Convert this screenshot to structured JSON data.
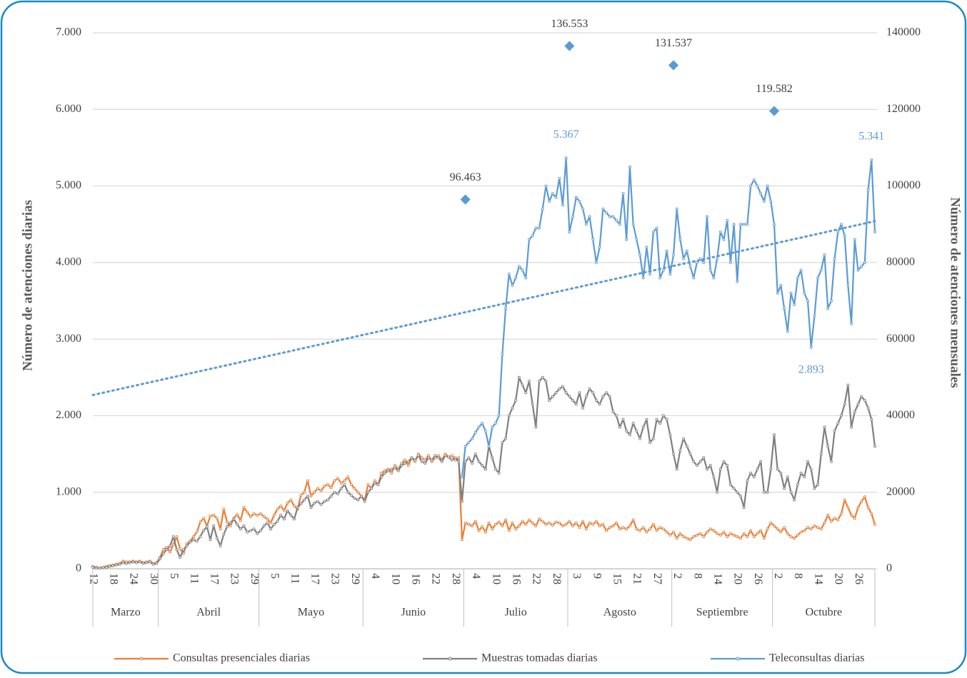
{
  "chart_data": {
    "type": "line",
    "y_label": "Número de atenciones diarias",
    "y2_label": "Número de atenciones mensuales",
    "ylim": [
      0,
      7000
    ],
    "yticks": [
      0,
      {
        "value": 1000,
        "label": "1.000"
      },
      {
        "value": 2000,
        "label": "2.000"
      },
      {
        "value": 3000,
        "label": "3.000"
      },
      {
        "value": 4000,
        "label": "4.000"
      },
      {
        "value": 5000,
        "label": "5.000"
      },
      {
        "value": 6000,
        "label": "6.000"
      },
      {
        "value": 7000,
        "label": "7.000"
      }
    ],
    "y2lim": [
      0,
      140000
    ],
    "y2ticks": [
      0,
      20000,
      40000,
      60000,
      80000,
      100000,
      120000,
      140000
    ],
    "grid": true,
    "legend": "bottom",
    "categories": [
      "12",
      null,
      null,
      null,
      null,
      null,
      "18",
      null,
      null,
      null,
      null,
      null,
      "24",
      null,
      null,
      null,
      null,
      null,
      "30",
      null,
      null,
      null,
      null,
      null,
      "5",
      null,
      null,
      null,
      null,
      null,
      "11",
      null,
      null,
      null,
      null,
      null,
      "17",
      null,
      null,
      null,
      null,
      null,
      "23",
      null,
      null,
      null,
      null,
      null,
      "29",
      null,
      null,
      null,
      null,
      null,
      "5",
      null,
      null,
      null,
      null,
      null,
      "11",
      null,
      null,
      null,
      null,
      null,
      "17",
      null,
      null,
      null,
      null,
      null,
      "23",
      null,
      null,
      null,
      null,
      null,
      "29",
      null,
      null,
      null,
      null,
      null,
      "4",
      null,
      null,
      null,
      null,
      null,
      "10",
      null,
      null,
      null,
      null,
      null,
      "16",
      null,
      null,
      null,
      null,
      null,
      "22",
      null,
      null,
      null,
      null,
      null,
      "28",
      null,
      null,
      null,
      null,
      null,
      "4",
      null,
      null,
      null,
      null,
      null,
      "10",
      null,
      null,
      null,
      null,
      null,
      "16",
      null,
      null,
      null,
      null,
      null,
      "22",
      null,
      null,
      null,
      null,
      null,
      "28",
      null,
      null,
      null,
      null,
      null,
      "3",
      null,
      null,
      null,
      null,
      null,
      "9",
      null,
      null,
      null,
      null,
      null,
      "15",
      null,
      null,
      null,
      null,
      null,
      "21",
      null,
      null,
      null,
      null,
      null,
      "27",
      null,
      null,
      null,
      null,
      null,
      "2",
      null,
      null,
      null,
      null,
      null,
      "8",
      null,
      null,
      null,
      null,
      null,
      "14",
      null,
      null,
      null,
      null,
      null,
      "20",
      null,
      null,
      null,
      null,
      null,
      "26",
      null,
      null,
      null,
      null,
      null,
      "2",
      null,
      null,
      null,
      null,
      null,
      "8",
      null,
      null,
      null,
      null,
      null,
      "14",
      null,
      null,
      null,
      null,
      null,
      "20",
      null,
      null,
      null,
      null,
      null,
      "26",
      null,
      null,
      null,
      null,
      null
    ],
    "x_groups": [
      {
        "label": "Marzo",
        "count": 20
      },
      {
        "label": "Abril",
        "count": 30
      },
      {
        "label": "Mayo",
        "count": 31
      },
      {
        "label": "Junio",
        "count": 30
      },
      {
        "label": "Julio",
        "count": 31
      },
      {
        "label": "Agosto",
        "count": 31
      },
      {
        "label": "Septiembre",
        "count": 30
      },
      {
        "label": "Octubre",
        "count": 31
      }
    ],
    "series": [
      {
        "name": "Consultas presenciales diarias",
        "color": "#ed7d31",
        "values": [
          30,
          20,
          10,
          20,
          30,
          40,
          50,
          60,
          70,
          100,
          90,
          90,
          100,
          90,
          100,
          80,
          90,
          100,
          70,
          80,
          150,
          250,
          280,
          220,
          320,
          420,
          260,
          200,
          330,
          360,
          420,
          480,
          610,
          660,
          560,
          690,
          700,
          660,
          520,
          780,
          610,
          560,
          660,
          710,
          630,
          800,
          740,
          680,
          720,
          700,
          720,
          680,
          650,
          600,
          700,
          780,
          820,
          760,
          860,
          900,
          820,
          780,
          960,
          1000,
          1150,
          950,
          1000,
          1050,
          1020,
          1080,
          1100,
          1060,
          1150,
          1180,
          1120,
          1150,
          1200,
          1100,
          1050,
          1000,
          950,
          900,
          1100,
          1050,
          1150,
          1100,
          1250,
          1280,
          1300,
          1250,
          1350,
          1300,
          1380,
          1420,
          1350,
          1450,
          1400,
          1500,
          1450,
          1420,
          1480,
          1400,
          1450,
          1480,
          1420,
          1500,
          1460,
          1480,
          1420,
          1450,
          380,
          600,
          580,
          560,
          620,
          500,
          550,
          480,
          600,
          520,
          580,
          610,
          560,
          640,
          500,
          600,
          520,
          560,
          620,
          580,
          640,
          600,
          560,
          650,
          620,
          580,
          600,
          570,
          610,
          600,
          560,
          580,
          620,
          560,
          600,
          540,
          620,
          520,
          600,
          580,
          620,
          560,
          580,
          500,
          540,
          560,
          600,
          520,
          540,
          520,
          560,
          640,
          520,
          500,
          540,
          480,
          520,
          580,
          500,
          540,
          520,
          480,
          440,
          480,
          400,
          460,
          420,
          400,
          380,
          420,
          440,
          460,
          420,
          480,
          520,
          500,
          460,
          440,
          480,
          420,
          460,
          440,
          420,
          400,
          460,
          420,
          500,
          420,
          460,
          500,
          400,
          520,
          600,
          560,
          520,
          480,
          540,
          460,
          420,
          400,
          440,
          480,
          500,
          540,
          520,
          560,
          540,
          520,
          600,
          700,
          620,
          660,
          640,
          720,
          900,
          800,
          700,
          660,
          800,
          880,
          940,
          800,
          720,
          580
        ]
      },
      {
        "name": "Muestras tomadas diarias",
        "color": "#7f7f7f",
        "values": [
          20,
          10,
          10,
          20,
          20,
          30,
          40,
          50,
          60,
          80,
          70,
          80,
          90,
          80,
          90,
          70,
          80,
          90,
          60,
          70,
          130,
          200,
          250,
          300,
          420,
          250,
          150,
          250,
          300,
          350,
          380,
          360,
          420,
          500,
          550,
          380,
          560,
          400,
          300,
          450,
          550,
          600,
          650,
          580,
          520,
          560,
          480,
          500,
          520,
          460,
          500,
          560,
          600,
          520,
          580,
          620,
          700,
          650,
          760,
          700,
          650,
          800,
          850,
          900,
          950,
          800,
          860,
          880,
          840,
          880,
          900,
          950,
          1000,
          980,
          1050,
          1100,
          1000,
          960,
          920,
          900,
          950,
          880,
          1000,
          1050,
          1120,
          1100,
          1200,
          1250,
          1280,
          1300,
          1320,
          1280,
          1350,
          1380,
          1400,
          1450,
          1420,
          1480,
          1400,
          1380,
          1450,
          1420,
          1480,
          1450,
          1400,
          1480,
          1460,
          1420,
          1450,
          1400,
          880,
          1400,
          1450,
          1380,
          1500,
          1400,
          1350,
          1300,
          1600,
          1450,
          1300,
          1250,
          1650,
          1700,
          2000,
          2100,
          2200,
          2500,
          2400,
          2300,
          2450,
          2150,
          1850,
          2450,
          2500,
          2450,
          2200,
          2250,
          2300,
          2350,
          2380,
          2300,
          2250,
          2200,
          2150,
          2300,
          2100,
          2250,
          2350,
          2300,
          2200,
          2150,
          2250,
          2300,
          2250,
          2050,
          2000,
          1850,
          1950,
          1800,
          1750,
          1900,
          1800,
          1700,
          1850,
          1950,
          1650,
          1700,
          1950,
          1900,
          2000,
          1950,
          1750,
          1500,
          1300,
          1550,
          1700,
          1600,
          1500,
          1400,
          1350,
          1400,
          1450,
          1300,
          1350,
          1200,
          1000,
          1300,
          1400,
          1350,
          1100,
          1050,
          1000,
          950,
          800,
          1150,
          1250,
          1200,
          1300,
          1400,
          1000,
          1000,
          1300,
          1750,
          1300,
          1250,
          1050,
          1200,
          1000,
          900,
          1100,
          1250,
          1200,
          1400,
          1300,
          1050,
          1100,
          1500,
          1850,
          1600,
          1400,
          1800,
          1900,
          2000,
          2150,
          2400,
          1850,
          2050,
          2150,
          2250,
          2200,
          2100,
          1950,
          1600
        ]
      },
      {
        "name": "Teleconsultas diarias",
        "color": "#5b9bd5",
        "values": [
          null,
          null,
          null,
          null,
          null,
          null,
          null,
          null,
          null,
          null,
          null,
          null,
          null,
          null,
          null,
          null,
          null,
          null,
          null,
          null,
          null,
          null,
          null,
          null,
          null,
          null,
          null,
          null,
          null,
          null,
          null,
          null,
          null,
          null,
          null,
          null,
          null,
          null,
          null,
          null,
          null,
          null,
          null,
          null,
          null,
          null,
          null,
          null,
          null,
          null,
          null,
          null,
          null,
          null,
          null,
          null,
          null,
          null,
          null,
          null,
          null,
          null,
          null,
          null,
          null,
          null,
          null,
          null,
          null,
          null,
          null,
          null,
          null,
          null,
          null,
          null,
          null,
          null,
          null,
          null,
          null,
          null,
          null,
          null,
          null,
          null,
          null,
          null,
          null,
          null,
          null,
          null,
          null,
          null,
          null,
          null,
          null,
          null,
          null,
          null,
          null,
          null,
          null,
          null,
          null,
          null,
          null,
          null,
          null,
          null,
          1200,
          1600,
          1650,
          1700,
          1780,
          1850,
          1900,
          1800,
          1600,
          1850,
          1900,
          2000,
          2800,
          3400,
          3850,
          3700,
          3800,
          3950,
          3900,
          3800,
          4300,
          4350,
          4450,
          4450,
          4700,
          5000,
          4800,
          4900,
          4850,
          5100,
          4750,
          5367,
          4400,
          4600,
          4850,
          4800,
          4700,
          4500,
          4600,
          4300,
          4000,
          4200,
          4700,
          4650,
          4600,
          4600,
          4550,
          4500,
          4900,
          4300,
          5250,
          4500,
          4300,
          4100,
          3800,
          4200,
          3850,
          4400,
          4450,
          3800,
          3900,
          4150,
          3850,
          4100,
          4700,
          4300,
          4050,
          4150,
          3950,
          3800,
          4000,
          4050,
          4000,
          4600,
          3900,
          3800,
          4050,
          4400,
          4300,
          4550,
          4000,
          4500,
          3750,
          4500,
          4500,
          4500,
          5000,
          5080,
          5000,
          4900,
          4800,
          5000,
          4800,
          4500,
          3600,
          3700,
          3400,
          3100,
          3600,
          3450,
          3800,
          3900,
          3600,
          3500,
          2893,
          3300,
          3800,
          3900,
          4100,
          3400,
          3500,
          4050,
          4400,
          4500,
          4350,
          3700,
          3200,
          4300,
          3900,
          3950,
          4000,
          4950,
          5341,
          4400
        ],
        "value_labels": [
          null,
          null,
          null,
          null,
          null,
          null,
          null,
          null,
          null,
          null,
          null,
          null,
          null,
          null,
          null,
          null,
          null,
          null,
          null,
          null,
          null,
          null,
          null,
          null,
          null,
          null,
          null,
          null,
          null,
          null,
          null,
          null,
          null,
          null,
          null,
          null,
          null,
          null,
          null,
          null,
          null,
          null,
          null,
          null,
          null,
          null,
          null,
          null,
          null,
          null,
          null,
          null,
          null,
          null,
          null,
          null,
          null,
          null,
          null,
          null,
          null,
          null,
          null,
          null,
          null,
          null,
          null,
          null,
          null,
          null,
          null,
          null,
          null,
          null,
          null,
          null,
          null,
          null,
          null,
          null,
          null,
          null,
          null,
          null,
          null,
          null,
          null,
          null,
          null,
          null,
          null,
          null,
          null,
          null,
          null,
          null,
          null,
          null,
          null,
          null,
          null,
          null,
          null,
          null,
          null,
          null,
          null,
          null,
          null,
          null,
          null,
          null,
          null,
          null,
          null,
          null,
          null,
          null,
          null,
          null,
          null,
          null,
          null,
          null,
          null,
          null,
          null,
          null,
          null,
          null,
          null,
          null,
          null,
          null,
          null,
          null,
          null,
          null,
          null,
          null,
          null,
          "5.367",
          null,
          null,
          null,
          null,
          null,
          null,
          null,
          null,
          null,
          null,
          null,
          null,
          null,
          null,
          null,
          null,
          null,
          null,
          null,
          null,
          null,
          null,
          null,
          null,
          null,
          null,
          null,
          null,
          null,
          null,
          null,
          null,
          null,
          null,
          null,
          null,
          null,
          null,
          null,
          null,
          null,
          null,
          null,
          null,
          null,
          null,
          null,
          null,
          null,
          null,
          null,
          null,
          null,
          null,
          null,
          null,
          null,
          null,
          null,
          null,
          null,
          null,
          null,
          null,
          null,
          null,
          null,
          null,
          null,
          null,
          null,
          null,
          "2.893",
          null,
          null,
          null,
          null,
          null,
          null,
          null,
          null,
          null,
          null,
          null,
          null,
          null,
          null,
          null,
          null,
          null,
          "5.341",
          null
        ]
      }
    ],
    "trendline": {
      "color": "#5b9bd5",
      "values": [
        2270,
        4540
      ]
    },
    "monthly": {
      "axis": "y2",
      "color": "#5b9bd5",
      "values": [
        null,
        null,
        null,
        null,
        96463,
        136553,
        131537,
        119582
      ],
      "value_labels": [
        null,
        null,
        null,
        null,
        "96.463",
        "136.553",
        "131.537",
        "119.582"
      ]
    }
  }
}
